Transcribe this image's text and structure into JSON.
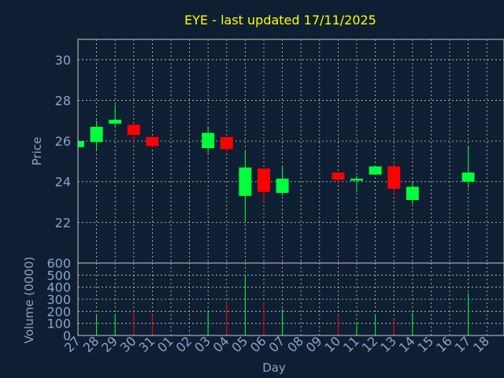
{
  "chart_data": [
    {
      "type": "candlestick",
      "title": "EYE - last updated 17/11/2025",
      "ylabel": "Price",
      "xlabel": "",
      "ylim": [
        20,
        31
      ],
      "yticks": [
        22,
        24,
        26,
        28,
        30
      ],
      "grid": true,
      "colors": {
        "up": "#00ff3c",
        "down": "#ff0000",
        "grid": "#c8c8c8"
      },
      "candles": [
        {
          "day": "27",
          "open": 25.7,
          "high": 26.0,
          "low": 25.7,
          "close": 26.0
        },
        {
          "day": "28",
          "open": 25.95,
          "high": 27.0,
          "low": 25.5,
          "close": 26.7
        },
        {
          "day": "29",
          "open": 26.85,
          "high": 27.8,
          "low": 26.7,
          "close": 27.05
        },
        {
          "day": "30",
          "open": 26.8,
          "high": 26.8,
          "low": 25.8,
          "close": 26.3
        },
        {
          "day": "31",
          "open": 26.2,
          "high": 26.2,
          "low": 25.7,
          "close": 25.75
        },
        {
          "day": "03",
          "open": 25.65,
          "high": 26.7,
          "low": 25.4,
          "close": 26.4
        },
        {
          "day": "04",
          "open": 26.2,
          "high": 26.2,
          "low": 25.5,
          "close": 25.6
        },
        {
          "day": "05",
          "open": 23.3,
          "high": 25.5,
          "low": 22.0,
          "close": 24.7
        },
        {
          "day": "06",
          "open": 24.65,
          "high": 24.65,
          "low": 23.1,
          "close": 23.5
        },
        {
          "day": "07",
          "open": 23.45,
          "high": 24.8,
          "low": 23.3,
          "close": 24.15
        },
        {
          "day": "10",
          "open": 24.45,
          "high": 24.45,
          "low": 23.9,
          "close": 24.1
        },
        {
          "day": "11",
          "open": 24.05,
          "high": 24.3,
          "low": 23.5,
          "close": 24.15
        },
        {
          "day": "12",
          "open": 24.35,
          "high": 24.8,
          "low": 24.35,
          "close": 24.75
        },
        {
          "day": "13",
          "open": 24.75,
          "high": 24.95,
          "low": 23.4,
          "close": 23.65
        },
        {
          "day": "14",
          "open": 23.1,
          "high": 24.0,
          "low": 22.9,
          "close": 23.75
        },
        {
          "day": "17",
          "open": 24.0,
          "high": 25.7,
          "low": 23.7,
          "close": 24.45
        }
      ]
    },
    {
      "type": "bar",
      "ylabel": "Volume (0000)",
      "xlabel": "Day",
      "ylim": [
        0,
        600
      ],
      "yticks": [
        0,
        100,
        200,
        300,
        400,
        500,
        600
      ],
      "grid": true,
      "x_tick_labels": [
        "27",
        "28",
        "29",
        "30",
        "31",
        "01",
        "02",
        "03",
        "04",
        "05",
        "06",
        "07",
        "08",
        "09",
        "10",
        "11",
        "12",
        "13",
        "14",
        "15",
        "16",
        "17",
        "18"
      ],
      "bars": [
        {
          "day": "27",
          "value": 0,
          "direction": "up"
        },
        {
          "day": "28",
          "value": 170,
          "direction": "up"
        },
        {
          "day": "29",
          "value": 180,
          "direction": "up"
        },
        {
          "day": "30",
          "value": 200,
          "direction": "down"
        },
        {
          "day": "31",
          "value": 170,
          "direction": "down"
        },
        {
          "day": "03",
          "value": 200,
          "direction": "up"
        },
        {
          "day": "04",
          "value": 270,
          "direction": "down"
        },
        {
          "day": "05",
          "value": 500,
          "direction": "up"
        },
        {
          "day": "06",
          "value": 270,
          "direction": "down"
        },
        {
          "day": "07",
          "value": 220,
          "direction": "up"
        },
        {
          "day": "10",
          "value": 170,
          "direction": "down"
        },
        {
          "day": "11",
          "value": 110,
          "direction": "up"
        },
        {
          "day": "12",
          "value": 170,
          "direction": "up"
        },
        {
          "day": "13",
          "value": 140,
          "direction": "down"
        },
        {
          "day": "14",
          "value": 190,
          "direction": "up"
        },
        {
          "day": "17",
          "value": 350,
          "direction": "up"
        }
      ]
    }
  ]
}
